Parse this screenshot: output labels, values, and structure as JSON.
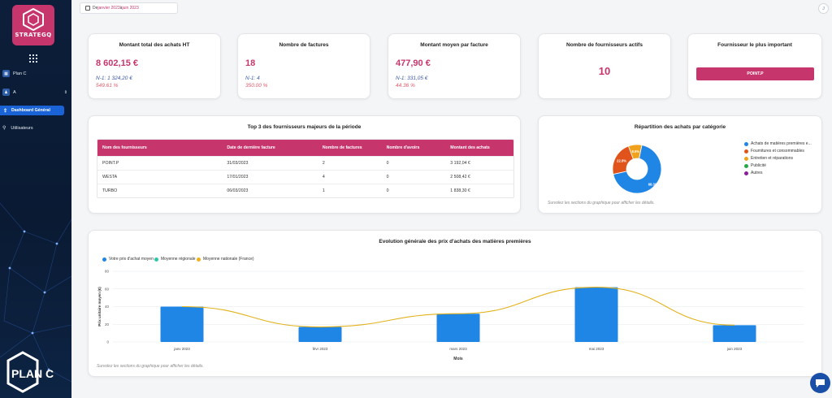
{
  "colors": {
    "accent": "#c7356d",
    "primary_blue": "#1a63d6",
    "sidebar_bg": "#0c1e3a",
    "n1_text": "#3f5aa5",
    "pct_text": "#e05a6a"
  },
  "brand": {
    "logo_text": "STRATEGQ",
    "bottom_logo_text": "PLAN C"
  },
  "sidebar": {
    "grid_icon": "apps-grid-icon",
    "company": {
      "label": "Plan C",
      "icon": "building-icon"
    },
    "user": {
      "label": "A",
      "icon": "users-icon",
      "chevron": "chevron-updown-icon"
    },
    "items": [
      {
        "label": "Dashboard Général",
        "icon": "upload-icon",
        "active": true
      },
      {
        "label": "Utilisateurs",
        "icon": "user-icon",
        "active": false
      }
    ]
  },
  "header": {
    "date_prefix": "De ",
    "date_from": "janvier 2023",
    "date_sep": " à ",
    "date_to": "juin 2023",
    "avatar_initial": "J"
  },
  "kpis": [
    {
      "title": "Montant total des achats HT",
      "value": "8 602,15 €",
      "n1": "N-1: 1 324,20 €",
      "pct": "549.61 %"
    },
    {
      "title": "Nombre de factures",
      "value": "18",
      "n1": "N-1: 4",
      "pct": "350.00 %"
    },
    {
      "title": "Montant moyen par facture",
      "value": "477,90 €",
      "n1": "N-1: 331,05 €",
      "pct": "44.36 %"
    },
    {
      "title": "Nombre de fournisseurs actifs",
      "value": "10"
    },
    {
      "title": "Fournisseur le plus important",
      "value": "POINT.P"
    }
  ],
  "top_suppliers": {
    "title": "Top 3 des fournisseurs majeurs de la période",
    "columns": [
      "Nom des fournisseurs",
      "Date de dernière facture",
      "Nombre de factures",
      "Nombre d'avoirs",
      "Montant des achats"
    ],
    "rows": [
      [
        "POINT.P",
        "31/03/2023",
        "2",
        "0",
        "3 192,04 €"
      ],
      [
        "WESTA",
        "17/01/2023",
        "4",
        "0",
        "2 508,42 €"
      ],
      [
        "TURBO",
        "06/03/2023",
        "1",
        "0",
        "1 838,30 €"
      ]
    ]
  },
  "category_pie": {
    "title": "Répartition des achats par catégorie",
    "hint": "Survolez les sections du graphique pour afficher les détails.",
    "slices": [
      {
        "name": "Achats de matières premières e...",
        "value": 68.3,
        "label": "68.3%",
        "color": "#1f86e6"
      },
      {
        "name": "Fournitures et consommables",
        "value": 22.8,
        "label": "22.8%",
        "color": "#e0541c"
      },
      {
        "name": "Entretien et réparations",
        "value": 8.9,
        "label": "8.9%",
        "color": "#f0a21c"
      },
      {
        "name": "Publicité",
        "value": 0,
        "label": "",
        "color": "#27a745"
      },
      {
        "name": "Autres",
        "value": 0,
        "label": "",
        "color": "#8a1f9a"
      }
    ]
  },
  "price_chart": {
    "title": "Evolution générale des prix d'achats des matières premières",
    "hint": "Survolez les sections du graphique pour afficher les détails.",
    "legend": [
      {
        "name": "Votre prix d'achat moyen",
        "color": "#1f86e6"
      },
      {
        "name": "Moyenne régionale",
        "color": "#2ec7a8"
      },
      {
        "name": "Moyenne nationale (France)",
        "color": "#f0b11c"
      }
    ]
  },
  "chart_data": {
    "type": "bar",
    "title": "Evolution générale des prix d'achats des matières premières",
    "xlabel": "Mois",
    "ylabel": "Prix unitaire moyen (€)",
    "categories": [
      "janv 2023",
      "févr 2023",
      "mars 2023",
      "mai 2023",
      "juin 2023"
    ],
    "ylim": [
      0,
      80
    ],
    "yticks": [
      0,
      20,
      40,
      60,
      80
    ],
    "grid": true,
    "legend_position": "top-left",
    "series": [
      {
        "name": "Votre prix d'achat moyen",
        "type": "bar",
        "values": [
          40,
          17,
          32,
          62,
          19
        ],
        "color": "#1f86e6"
      },
      {
        "name": "Moyenne nationale (France)",
        "type": "line",
        "values": [
          40,
          17,
          32,
          62,
          19
        ],
        "color": "#e2b21c"
      }
    ]
  },
  "chat_icon": "chat-bubble-icon"
}
